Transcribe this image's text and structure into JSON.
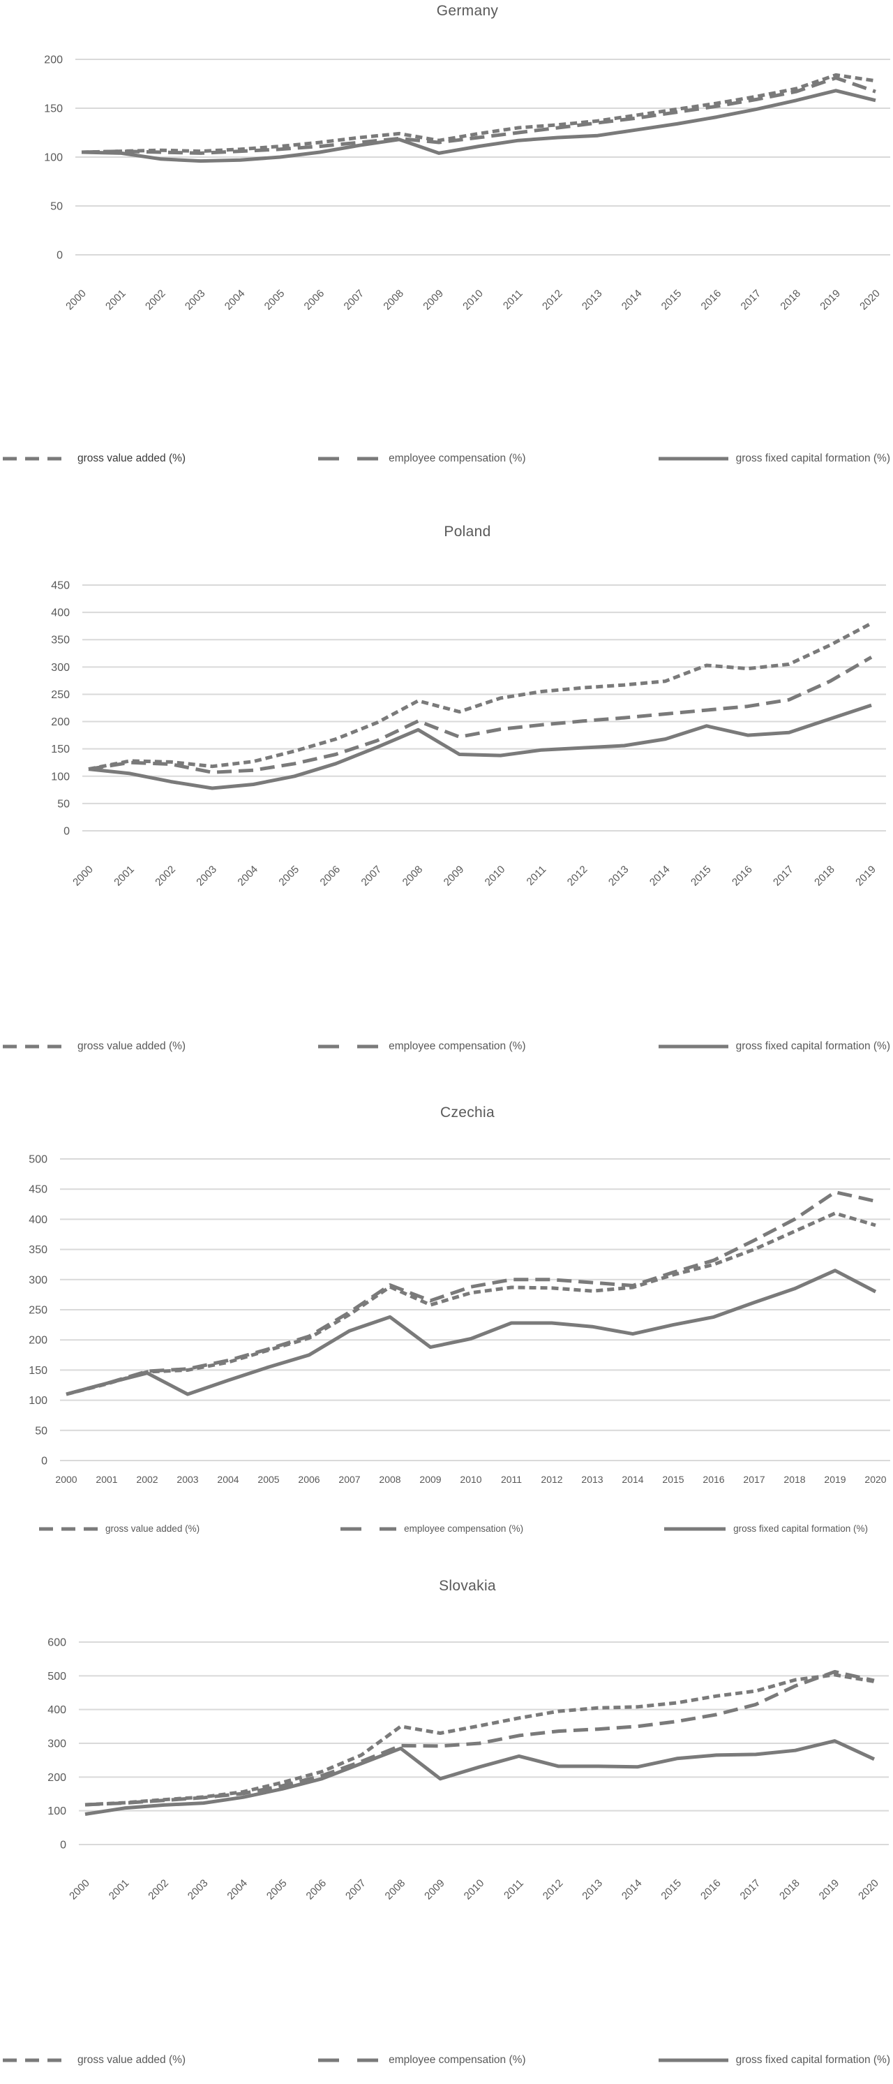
{
  "colors": {
    "line": "#7a7a7a",
    "grid": "#d9d9d9",
    "text": "#595959"
  },
  "chart_data": [
    {
      "type": "line",
      "title": "Germany",
      "x": [
        "2000",
        "2001",
        "2002",
        "2003",
        "2004",
        "2005",
        "2006",
        "2007",
        "2008",
        "2009",
        "2010",
        "2011",
        "2012",
        "2013",
        "2014",
        "2015",
        "2016",
        "2017",
        "2018",
        "2019",
        "2020"
      ],
      "ylim": [
        0,
        200
      ],
      "ystep": 50,
      "grid": true,
      "legend_position": "bottom",
      "x_label_rotation": 45,
      "series": [
        {
          "name": "gross value added (%)",
          "style": "short-dash",
          "values": [
            105,
            106,
            107,
            106,
            108,
            111,
            115,
            120,
            124,
            117,
            124,
            130,
            133,
            137,
            143,
            149,
            155,
            162,
            170,
            184,
            178
          ]
        },
        {
          "name": "employee compensation (%)",
          "style": "long-dash",
          "values": [
            105,
            106,
            105,
            104,
            106,
            108,
            111,
            115,
            119,
            115,
            120,
            125,
            130,
            135,
            140,
            146,
            152,
            159,
            167,
            181,
            167
          ]
        },
        {
          "name": "gross fixed capital formation (%)",
          "style": "solid",
          "values": [
            105,
            104,
            98,
            96,
            97,
            100,
            105,
            112,
            118,
            104,
            111,
            117,
            120,
            122,
            128,
            134,
            141,
            149,
            158,
            168,
            158
          ]
        }
      ]
    },
    {
      "type": "line",
      "title": "Poland",
      "x": [
        "2000",
        "2001",
        "2002",
        "2003",
        "2004",
        "2005",
        "2006",
        "2007",
        "2008",
        "2009",
        "2010",
        "2011",
        "2012",
        "2013",
        "2014",
        "2015",
        "2016",
        "2017",
        "2018",
        "2019"
      ],
      "ylim": [
        0,
        450
      ],
      "ystep": 50,
      "grid": true,
      "legend_position": "bottom",
      "x_label_rotation": 45,
      "series": [
        {
          "name": "gross value added (%)",
          "style": "short-dash",
          "values": [
            113,
            128,
            126,
            118,
            127,
            146,
            168,
            198,
            238,
            218,
            243,
            255,
            262,
            267,
            274,
            303,
            297,
            305,
            340,
            380
          ]
        },
        {
          "name": "employee compensation (%)",
          "style": "long-dash",
          "values": [
            113,
            125,
            122,
            107,
            111,
            123,
            140,
            165,
            201,
            172,
            186,
            194,
            201,
            207,
            214,
            221,
            228,
            240,
            274,
            318
          ]
        },
        {
          "name": "gross fixed capital formation (%)",
          "style": "solid",
          "values": [
            113,
            105,
            90,
            78,
            85,
            100,
            123,
            153,
            185,
            140,
            138,
            148,
            152,
            156,
            168,
            192,
            175,
            180,
            205,
            230
          ]
        }
      ]
    },
    {
      "type": "line",
      "title": "Czechia",
      "x": [
        "2000",
        "2001",
        "2002",
        "2003",
        "2004",
        "2005",
        "2006",
        "2007",
        "2008",
        "2009",
        "2010",
        "2011",
        "2012",
        "2013",
        "2014",
        "2015",
        "2016",
        "2017",
        "2018",
        "2019",
        "2020"
      ],
      "ylim": [
        0,
        500
      ],
      "ystep": 50,
      "grid": true,
      "legend_position": "bottom",
      "x_label_rotation": 0,
      "series": [
        {
          "name": "gross value added (%)",
          "style": "short-dash",
          "values": [
            110,
            127,
            147,
            150,
            163,
            183,
            203,
            242,
            288,
            258,
            278,
            287,
            286,
            281,
            287,
            308,
            325,
            350,
            380,
            410,
            390
          ]
        },
        {
          "name": "employee compensation (%)",
          "style": "long-dash",
          "values": [
            110,
            128,
            148,
            152,
            166,
            185,
            206,
            246,
            291,
            265,
            288,
            300,
            300,
            295,
            290,
            312,
            332,
            365,
            400,
            445,
            430
          ]
        },
        {
          "name": "gross fixed capital formation (%)",
          "style": "solid",
          "values": [
            110,
            128,
            145,
            110,
            133,
            155,
            175,
            215,
            238,
            188,
            202,
            228,
            228,
            222,
            210,
            225,
            238,
            262,
            285,
            315,
            280
          ]
        }
      ]
    },
    {
      "type": "line",
      "title": "Slovakia",
      "x": [
        "2000",
        "2001",
        "2002",
        "2003",
        "2004",
        "2005",
        "2006",
        "2007",
        "2008",
        "2009",
        "2010",
        "2011",
        "2012",
        "2013",
        "2014",
        "2015",
        "2016",
        "2017",
        "2018",
        "2019",
        "2020"
      ],
      "ylim": [
        0,
        600
      ],
      "ystep": 100,
      "grid": true,
      "legend_position": "bottom",
      "x_label_rotation": 45,
      "series": [
        {
          "name": "gross value added (%)",
          "style": "short-dash",
          "values": [
            118,
            124,
            133,
            141,
            156,
            184,
            216,
            265,
            350,
            330,
            352,
            375,
            395,
            405,
            408,
            420,
            440,
            455,
            488,
            503,
            483
          ]
        },
        {
          "name": "employee compensation (%)",
          "style": "long-dash",
          "values": [
            118,
            123,
            131,
            139,
            151,
            174,
            204,
            246,
            293,
            292,
            300,
            323,
            336,
            342,
            350,
            365,
            385,
            415,
            470,
            512,
            486
          ]
        },
        {
          "name": "gross fixed capital formation (%)",
          "style": "solid",
          "values": [
            90,
            108,
            117,
            123,
            140,
            165,
            195,
            240,
            285,
            195,
            230,
            262,
            232,
            232,
            230,
            255,
            265,
            267,
            279,
            307,
            253
          ]
        }
      ]
    }
  ]
}
